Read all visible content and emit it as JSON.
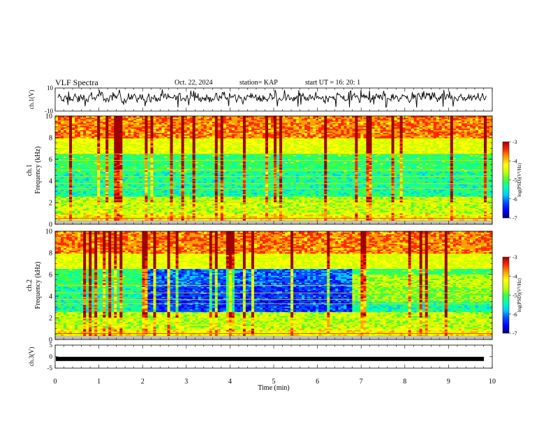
{
  "header": {
    "title": "VLF Spectra",
    "date": "Oct. 22, 2024",
    "station": "station= KAP",
    "start": "start  UT  =   16: 20: 1"
  },
  "chart_data": [
    {
      "type": "line",
      "ylabel": "ch.1(V)",
      "ylim": [
        -10,
        10
      ],
      "yticks": [
        "10",
        "-10"
      ],
      "description": "ch.1 waveform amplitude, noisy signal around -3 to 8 V"
    },
    {
      "type": "heatmap",
      "ylabel_top": "ch.1",
      "ylabel": "Frequency  (kHz)",
      "ylim": [
        0,
        10
      ],
      "yticks": [
        "0",
        "2",
        "4",
        "6",
        "8",
        "10"
      ],
      "colorbar": {
        "label": "log(PSD)(V²/Hz)",
        "range": [
          -7,
          -3
        ],
        "ticks": [
          "-3",
          "-4",
          "-5",
          "-6",
          "-7"
        ]
      }
    },
    {
      "type": "heatmap",
      "ylabel_top": "ch.2",
      "ylabel": "Frequency  (kHz)",
      "ylim": [
        0,
        10
      ],
      "yticks": [
        "0",
        "2",
        "4",
        "6",
        "8",
        "10"
      ],
      "colorbar": {
        "label": "log(PSD)(V²/Hz)",
        "range": [
          -7,
          -3
        ],
        "ticks": [
          "-3",
          "-4",
          "-5",
          "-6",
          "-7"
        ]
      }
    },
    {
      "type": "line",
      "ylabel": "ch.3(V)",
      "ylim": [
        -5,
        5
      ],
      "yticks": [
        "5",
        "0",
        "-5"
      ],
      "level": -1,
      "xlabel": "Time  (min)",
      "xlim": [
        0,
        10
      ],
      "xticks": [
        "0",
        "1",
        "2",
        "3",
        "4",
        "5",
        "6",
        "7",
        "8",
        "9",
        "10"
      ]
    }
  ],
  "colors": {
    "colormap": [
      "#000080",
      "#0000ff",
      "#0050ff",
      "#00c8ff",
      "#00ffb0",
      "#40ff40",
      "#c8ff00",
      "#ffff00",
      "#ffa000",
      "#ff2800",
      "#a00000"
    ]
  }
}
